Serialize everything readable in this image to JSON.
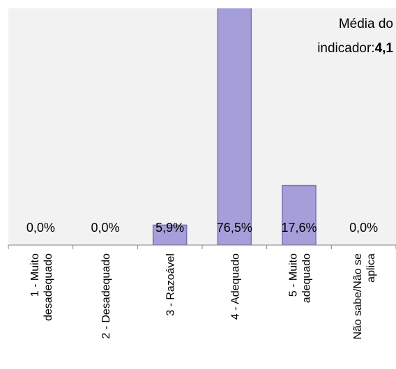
{
  "chart_data": {
    "type": "bar",
    "categories": [
      "1 - Muito\ndesadequado",
      "2 - Desadequado",
      "3 - Razoável",
      "4 - Adequado",
      "5 - Muito\nadequado",
      "Não sabe/Não se\naplica"
    ],
    "values": [
      0,
      0,
      5.9,
      76.5,
      17.6,
      0
    ],
    "value_labels": [
      "0,0%",
      "0,0%",
      "5,9%",
      "76,5%",
      "17,6%",
      "0,0%"
    ],
    "color": "#a59fd9",
    "ylim": [
      0,
      70
    ],
    "annotation": {
      "text": "Média do indicador:",
      "value": "4,1"
    }
  }
}
